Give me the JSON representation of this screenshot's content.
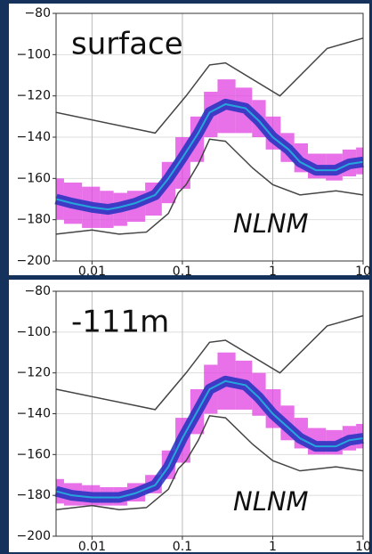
{
  "chart_data": [
    {
      "type": "line",
      "xscale": "log",
      "label": "surface",
      "annotation": "NLNM",
      "grid": true,
      "xlim": [
        0.004,
        10
      ],
      "ylim": [
        -200,
        -80
      ],
      "xticks": [
        0.01,
        0.1,
        1,
        10
      ],
      "yticks": [
        {
          "value": -80,
          "label": "−80"
        },
        {
          "value": -100,
          "label": "−100"
        },
        {
          "value": -120,
          "label": "−120"
        },
        {
          "value": -140,
          "label": "−140"
        },
        {
          "value": -160,
          "label": "−160"
        },
        {
          "value": -180,
          "label": "−180"
        },
        {
          "value": -200,
          "label": "−200"
        }
      ],
      "band": {
        "color": "#e040e0",
        "core_color": "#2030c0",
        "x": [
          0.004,
          0.006,
          0.01,
          0.015,
          0.02,
          0.03,
          0.05,
          0.07,
          0.1,
          0.15,
          0.2,
          0.3,
          0.5,
          0.7,
          1,
          1.5,
          2,
          3,
          5,
          7,
          10
        ],
        "upper": [
          -160,
          -162,
          -164,
          -166,
          -167,
          -166,
          -162,
          -152,
          -140,
          -130,
          -118,
          -112,
          -116,
          -122,
          -130,
          -138,
          -143,
          -148,
          -148,
          -146,
          -145
        ],
        "lower": [
          -180,
          -182,
          -184,
          -184,
          -183,
          -181,
          -178,
          -172,
          -165,
          -152,
          -140,
          -138,
          -138,
          -140,
          -146,
          -152,
          -157,
          -160,
          -161,
          -159,
          -158
        ],
        "core": [
          -170,
          -172,
          -174,
          -175,
          -174,
          -172,
          -168,
          -160,
          -150,
          -138,
          -128,
          -124,
          -126,
          -132,
          -140,
          -146,
          -152,
          -156,
          -156,
          -153,
          -152
        ]
      },
      "series": [
        {
          "color": "#444444",
          "x": [
            0.004,
            0.05,
            0.11,
            0.2,
            0.3,
            1.2,
            4,
            10
          ],
          "values": [
            -128,
            -138,
            -120,
            -105,
            -104,
            -120,
            -97,
            -92
          ]
        },
        {
          "color": "#444444",
          "x": [
            0.004,
            0.01,
            0.02,
            0.04,
            0.07,
            0.09,
            0.11,
            0.15,
            0.2,
            0.3,
            0.6,
            1,
            2,
            5,
            10
          ],
          "values": [
            -187,
            -185,
            -187,
            -186,
            -177,
            -167,
            -163,
            -153,
            -141,
            -142,
            -155,
            -163,
            -168,
            -166,
            -168
          ]
        }
      ]
    },
    {
      "type": "line",
      "xscale": "log",
      "label": "-111m",
      "annotation": "NLNM",
      "grid": true,
      "xlim": [
        0.004,
        10
      ],
      "ylim": [
        -200,
        -80
      ],
      "xticks": [
        0.01,
        0.1,
        1,
        10
      ],
      "yticks": [
        {
          "value": -80,
          "label": "−80"
        },
        {
          "value": -100,
          "label": "−100"
        },
        {
          "value": -120,
          "label": "−120"
        },
        {
          "value": -140,
          "label": "−140"
        },
        {
          "value": -160,
          "label": "−160"
        },
        {
          "value": -180,
          "label": "−180"
        },
        {
          "value": -200,
          "label": "−200"
        }
      ],
      "band": {
        "color": "#e040e0",
        "core_color": "#2030c0",
        "x": [
          0.004,
          0.006,
          0.01,
          0.015,
          0.02,
          0.03,
          0.05,
          0.07,
          0.1,
          0.15,
          0.2,
          0.3,
          0.5,
          0.7,
          1,
          1.5,
          2,
          3,
          5,
          7,
          10
        ],
        "upper": [
          -172,
          -174,
          -175,
          -176,
          -176,
          -174,
          -170,
          -158,
          -142,
          -128,
          -116,
          -110,
          -114,
          -120,
          -128,
          -136,
          -142,
          -147,
          -148,
          -146,
          -145
        ],
        "lower": [
          -184,
          -185,
          -185,
          -185,
          -185,
          -183,
          -179,
          -172,
          -164,
          -150,
          -140,
          -138,
          -138,
          -141,
          -147,
          -153,
          -157,
          -160,
          -160,
          -158,
          -157
        ],
        "core": [
          -178,
          -180,
          -181,
          -181,
          -181,
          -179,
          -175,
          -166,
          -152,
          -138,
          -128,
          -124,
          -126,
          -132,
          -140,
          -147,
          -152,
          -156,
          -156,
          -153,
          -152
        ]
      },
      "series": [
        {
          "color": "#444444",
          "x": [
            0.004,
            0.05,
            0.11,
            0.2,
            0.3,
            1.2,
            4,
            10
          ],
          "values": [
            -128,
            -138,
            -120,
            -105,
            -104,
            -120,
            -97,
            -92
          ]
        },
        {
          "color": "#444444",
          "x": [
            0.004,
            0.01,
            0.02,
            0.04,
            0.07,
            0.09,
            0.11,
            0.15,
            0.2,
            0.3,
            0.6,
            1,
            2,
            5,
            10
          ],
          "values": [
            -187,
            -185,
            -187,
            -186,
            -177,
            -167,
            -163,
            -153,
            -141,
            -142,
            -155,
            -163,
            -168,
            -166,
            -168
          ]
        }
      ]
    }
  ]
}
